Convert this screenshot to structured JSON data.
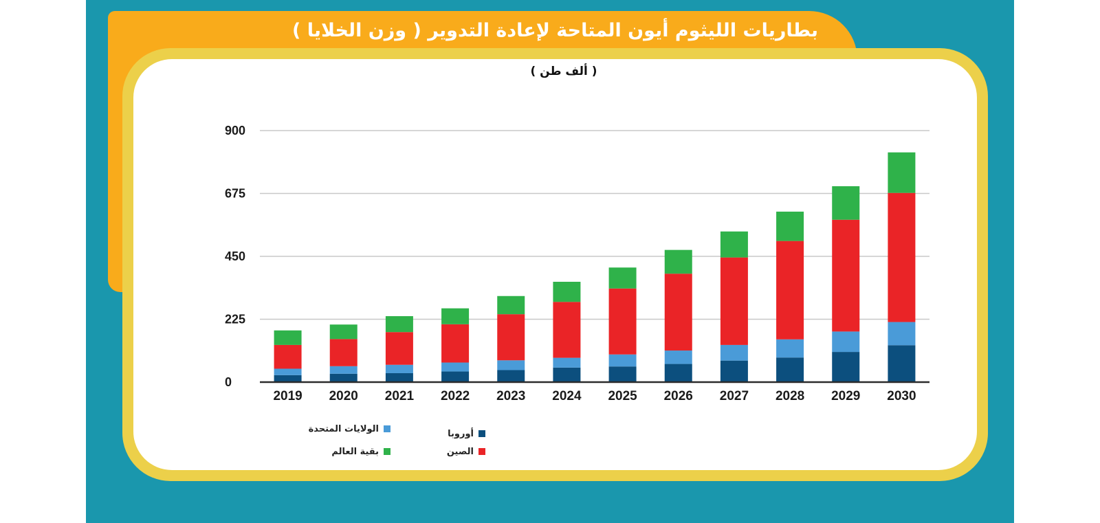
{
  "colors": {
    "europe": "#0c4f7e",
    "us": "#4a9bd8",
    "china": "#ea2427",
    "rest": "#2fb24a"
  },
  "chart_data": {
    "type": "bar",
    "stacked": true,
    "title": "بطاريات الليثوم أيون المتاحة لإعادة التدوير ( وزن الخلايا )",
    "subtitle": "( ألف طن )",
    "xlabel": "",
    "ylabel": "",
    "ylim": [
      0,
      900
    ],
    "yticks": [
      "0",
      "225",
      "450",
      "675",
      "900"
    ],
    "categories": [
      "2019",
      "2020",
      "2021",
      "2022",
      "2023",
      "2024",
      "2025",
      "2026",
      "2027",
      "2028",
      "2029",
      "2030"
    ],
    "series": [
      {
        "name": "أوروبا",
        "key": "europe",
        "values": [
          25,
          30,
          32,
          38,
          43,
          52,
          56,
          65,
          77,
          88,
          108,
          132
        ]
      },
      {
        "name": "الولايات المتحدة",
        "key": "us",
        "values": [
          23,
          27,
          30,
          32,
          35,
          35,
          43,
          48,
          56,
          65,
          73,
          83
        ]
      },
      {
        "name": "الصين",
        "key": "china",
        "values": [
          85,
          97,
          117,
          137,
          165,
          200,
          236,
          275,
          313,
          352,
          400,
          462
        ]
      },
      {
        "name": "بقية العالم",
        "key": "rest",
        "values": [
          52,
          52,
          57,
          57,
          65,
          72,
          75,
          85,
          93,
          105,
          120,
          145
        ]
      }
    ],
    "legend_position": "bottom-left"
  }
}
